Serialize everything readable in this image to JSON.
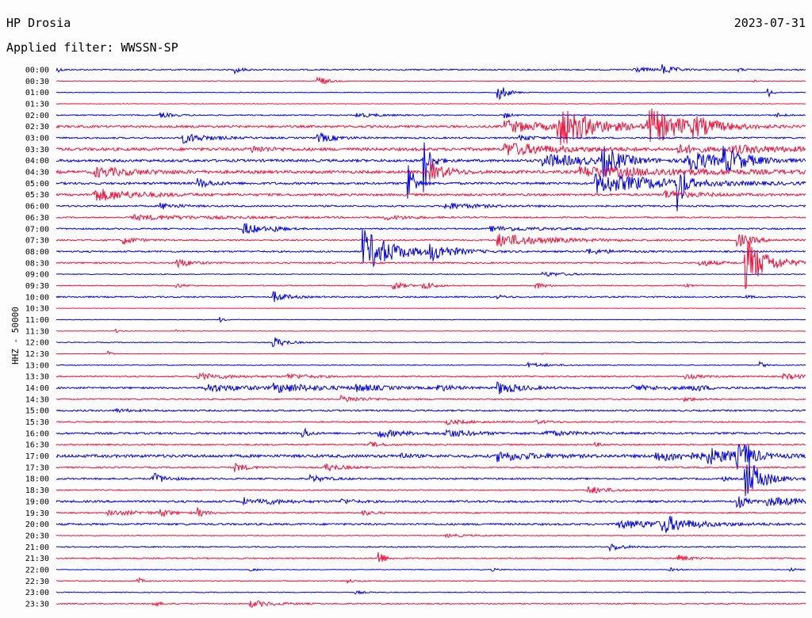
{
  "header": {
    "station": "HP Drosia",
    "date": "2023-07-31",
    "filter": "Applied filter: WWSSN-SP"
  },
  "channel_label": "HHZ - 50000",
  "colors": {
    "line_a": "#0000e6",
    "line_b": "#f0113a",
    "text": "#000000",
    "background": "#fdfdfd"
  },
  "chart_data": {
    "type": "line",
    "ylabel": "HHZ - 50000",
    "categories": [
      "00:00",
      "00:30",
      "01:00",
      "01:30",
      "02:00",
      "02:30",
      "03:00",
      "03:30",
      "04:00",
      "04:30",
      "05:00",
      "05:30",
      "06:00",
      "06:30",
      "07:00",
      "07:30",
      "08:00",
      "08:30",
      "09:00",
      "09:30",
      "10:00",
      "10:30",
      "11:00",
      "11:30",
      "12:00",
      "12:30",
      "13:00",
      "13:30",
      "14:00",
      "14:30",
      "15:00",
      "15:30",
      "16:00",
      "16:30",
      "17:00",
      "17:30",
      "18:00",
      "18:30",
      "19:00",
      "19:30",
      "20:00",
      "20:30",
      "21:00",
      "21:30",
      "22:00",
      "22:30",
      "23:00",
      "23:30"
    ],
    "series": [
      {
        "noise": 0.8,
        "events": [
          [
            0.0,
            4,
            5
          ],
          [
            0.24,
            4,
            8
          ],
          [
            0.77,
            3,
            25
          ],
          [
            0.81,
            6,
            12
          ],
          [
            0.91,
            2,
            6
          ]
        ]
      },
      {
        "noise": 0.4,
        "events": [
          [
            0.35,
            7,
            10
          ],
          [
            0.93,
            2,
            4
          ]
        ]
      },
      {
        "noise": 0.4,
        "events": [
          [
            0.59,
            12,
            10
          ],
          [
            0.95,
            6,
            6
          ]
        ]
      },
      {
        "noise": 0.3,
        "events": []
      },
      {
        "noise": 0.7,
        "events": [
          [
            0.14,
            3,
            15
          ],
          [
            0.4,
            3,
            25
          ],
          [
            0.6,
            4,
            6
          ],
          [
            0.96,
            3,
            10
          ]
        ]
      },
      {
        "noise": 1.4,
        "events": [
          [
            0.6,
            8,
            50
          ],
          [
            0.67,
            25,
            40
          ],
          [
            0.79,
            22,
            45
          ],
          [
            0.85,
            8,
            25
          ]
        ]
      },
      {
        "noise": 1.0,
        "events": [
          [
            0.17,
            6,
            30
          ],
          [
            0.35,
            6,
            20
          ],
          [
            0.62,
            4,
            15
          ]
        ]
      },
      {
        "noise": 1.8,
        "events": [
          [
            0.26,
            4,
            20
          ],
          [
            0.6,
            8,
            60
          ],
          [
            0.83,
            5,
            30
          ],
          [
            0.9,
            4,
            90
          ]
        ]
      },
      {
        "noise": 1.6,
        "events": [
          [
            0.49,
            40,
            8
          ],
          [
            0.65,
            8,
            60
          ],
          [
            0.73,
            18,
            20
          ],
          [
            0.84,
            16,
            30
          ],
          [
            0.89,
            14,
            30
          ]
        ]
      },
      {
        "noise": 1.8,
        "events": [
          [
            0.05,
            6,
            50
          ],
          [
            0.5,
            12,
            20
          ],
          [
            0.7,
            6,
            150
          ]
        ]
      },
      {
        "noise": 1.4,
        "events": [
          [
            0.19,
            6,
            15
          ],
          [
            0.47,
            40,
            6
          ],
          [
            0.72,
            12,
            90
          ],
          [
            0.83,
            40,
            6
          ]
        ]
      },
      {
        "noise": 1.4,
        "events": [
          [
            0.05,
            8,
            50
          ],
          [
            0.81,
            5,
            40
          ]
        ]
      },
      {
        "noise": 1.0,
        "events": [
          [
            0.14,
            4,
            20
          ],
          [
            0.52,
            4,
            40
          ]
        ]
      },
      {
        "noise": 0.8,
        "events": [
          [
            0.1,
            3,
            120
          ],
          [
            0.44,
            3,
            30
          ]
        ]
      },
      {
        "noise": 0.9,
        "events": [
          [
            0.25,
            8,
            20
          ],
          [
            0.29,
            3,
            10
          ],
          [
            0.58,
            3,
            60
          ]
        ]
      },
      {
        "noise": 0.9,
        "events": [
          [
            0.09,
            5,
            15
          ],
          [
            0.59,
            8,
            60
          ],
          [
            0.91,
            8,
            20
          ]
        ]
      },
      {
        "noise": 1.0,
        "events": [
          [
            0.41,
            28,
            35
          ],
          [
            0.5,
            10,
            25
          ],
          [
            0.71,
            3,
            30
          ]
        ]
      },
      {
        "noise": 0.9,
        "events": [
          [
            0.16,
            7,
            15
          ],
          [
            0.86,
            4,
            20
          ],
          [
            0.92,
            32,
            25
          ]
        ]
      },
      {
        "noise": 0.5,
        "events": [
          [
            0.65,
            3,
            30
          ]
        ]
      },
      {
        "noise": 0.6,
        "events": [
          [
            0.16,
            3,
            10
          ],
          [
            0.45,
            6,
            12
          ],
          [
            0.49,
            6,
            12
          ],
          [
            0.64,
            4,
            12
          ],
          [
            0.84,
            2,
            8
          ]
        ]
      },
      {
        "noise": 0.9,
        "events": [
          [
            0.29,
            7,
            15
          ],
          [
            0.59,
            2,
            10
          ],
          [
            0.92,
            2,
            8
          ]
        ]
      },
      {
        "noise": 0.2,
        "events": []
      },
      {
        "noise": 0.3,
        "events": [
          [
            0.22,
            3,
            5
          ]
        ]
      },
      {
        "noise": 0.3,
        "events": [
          [
            0.08,
            2,
            5
          ],
          [
            0.16,
            2,
            6
          ]
        ]
      },
      {
        "noise": 0.5,
        "events": [
          [
            0.29,
            7,
            15
          ]
        ]
      },
      {
        "noise": 0.3,
        "events": [
          [
            0.07,
            3,
            4
          ],
          [
            0.65,
            2,
            4
          ]
        ]
      },
      {
        "noise": 0.5,
        "events": [
          [
            0.63,
            3,
            25
          ],
          [
            0.94,
            4,
            6
          ]
        ]
      },
      {
        "noise": 0.8,
        "events": [
          [
            0.19,
            4,
            40
          ],
          [
            0.31,
            3,
            30
          ],
          [
            0.84,
            3,
            20
          ],
          [
            0.97,
            3,
            40
          ]
        ]
      },
      {
        "noise": 1.1,
        "events": [
          [
            0.2,
            5,
            50
          ],
          [
            0.29,
            5,
            60
          ],
          [
            0.4,
            4,
            30
          ],
          [
            0.51,
            4,
            20
          ],
          [
            0.59,
            8,
            25
          ],
          [
            0.77,
            3,
            50
          ],
          [
            0.85,
            4,
            15
          ]
        ]
      },
      {
        "noise": 0.8,
        "events": [
          [
            0.38,
            4,
            30
          ],
          [
            0.84,
            2,
            20
          ]
        ]
      },
      {
        "noise": 1.0,
        "events": [
          [
            0.08,
            2,
            20
          ]
        ]
      },
      {
        "noise": 0.8,
        "events": [
          [
            0.52,
            3,
            30
          ],
          [
            0.64,
            2,
            20
          ]
        ]
      },
      {
        "noise": 1.2,
        "events": [
          [
            0.33,
            8,
            6
          ],
          [
            0.43,
            5,
            30
          ],
          [
            0.52,
            5,
            30
          ],
          [
            0.65,
            3,
            40
          ]
        ]
      },
      {
        "noise": 0.9,
        "events": [
          [
            0.42,
            3,
            15
          ],
          [
            0.72,
            2,
            10
          ]
        ]
      },
      {
        "noise": 1.8,
        "events": [
          [
            0.46,
            4,
            8
          ],
          [
            0.59,
            6,
            40
          ],
          [
            0.8,
            5,
            80
          ],
          [
            0.87,
            8,
            30
          ],
          [
            0.91,
            12,
            10
          ],
          [
            0.92,
            10,
            10
          ]
        ]
      },
      {
        "noise": 0.9,
        "events": [
          [
            0.24,
            5,
            15
          ],
          [
            0.36,
            5,
            20
          ]
        ]
      },
      {
        "noise": 1.0,
        "events": [
          [
            0.13,
            7,
            15
          ],
          [
            0.34,
            4,
            20
          ],
          [
            0.89,
            3,
            6
          ],
          [
            0.92,
            28,
            20
          ]
        ]
      },
      {
        "noise": 0.7,
        "events": [
          [
            0.71,
            5,
            25
          ]
        ]
      },
      {
        "noise": 1.3,
        "events": [
          [
            0.25,
            5,
            6
          ],
          [
            0.27,
            4,
            30
          ],
          [
            0.38,
            3,
            15
          ],
          [
            0.91,
            8,
            10
          ],
          [
            0.95,
            5,
            60
          ]
        ]
      },
      {
        "noise": 0.8,
        "events": [
          [
            0.07,
            3,
            50
          ],
          [
            0.14,
            6,
            8
          ],
          [
            0.19,
            6,
            8
          ],
          [
            0.41,
            3,
            15
          ]
        ]
      },
      {
        "noise": 1.2,
        "events": [
          [
            0.75,
            5,
            80
          ],
          [
            0.81,
            10,
            25
          ]
        ]
      },
      {
        "noise": 0.5,
        "events": [
          [
            0.52,
            2,
            30
          ]
        ]
      },
      {
        "noise": 0.7,
        "events": [
          [
            0.74,
            5,
            15
          ]
        ]
      },
      {
        "noise": 0.8,
        "events": [
          [
            0.43,
            12,
            6
          ],
          [
            0.83,
            4,
            15
          ]
        ]
      },
      {
        "noise": 0.4,
        "events": [
          [
            0.26,
            2,
            10
          ],
          [
            0.58,
            2,
            10
          ],
          [
            0.82,
            2,
            10
          ],
          [
            0.98,
            2,
            10
          ]
        ]
      },
      {
        "noise": 0.6,
        "events": [
          [
            0.11,
            4,
            5
          ],
          [
            0.39,
            2,
            10
          ]
        ]
      },
      {
        "noise": 0.5,
        "events": [
          [
            0.4,
            2,
            10
          ]
        ]
      },
      {
        "noise": 0.7,
        "events": [
          [
            0.13,
            3,
            10
          ],
          [
            0.26,
            4,
            30
          ]
        ]
      }
    ]
  }
}
